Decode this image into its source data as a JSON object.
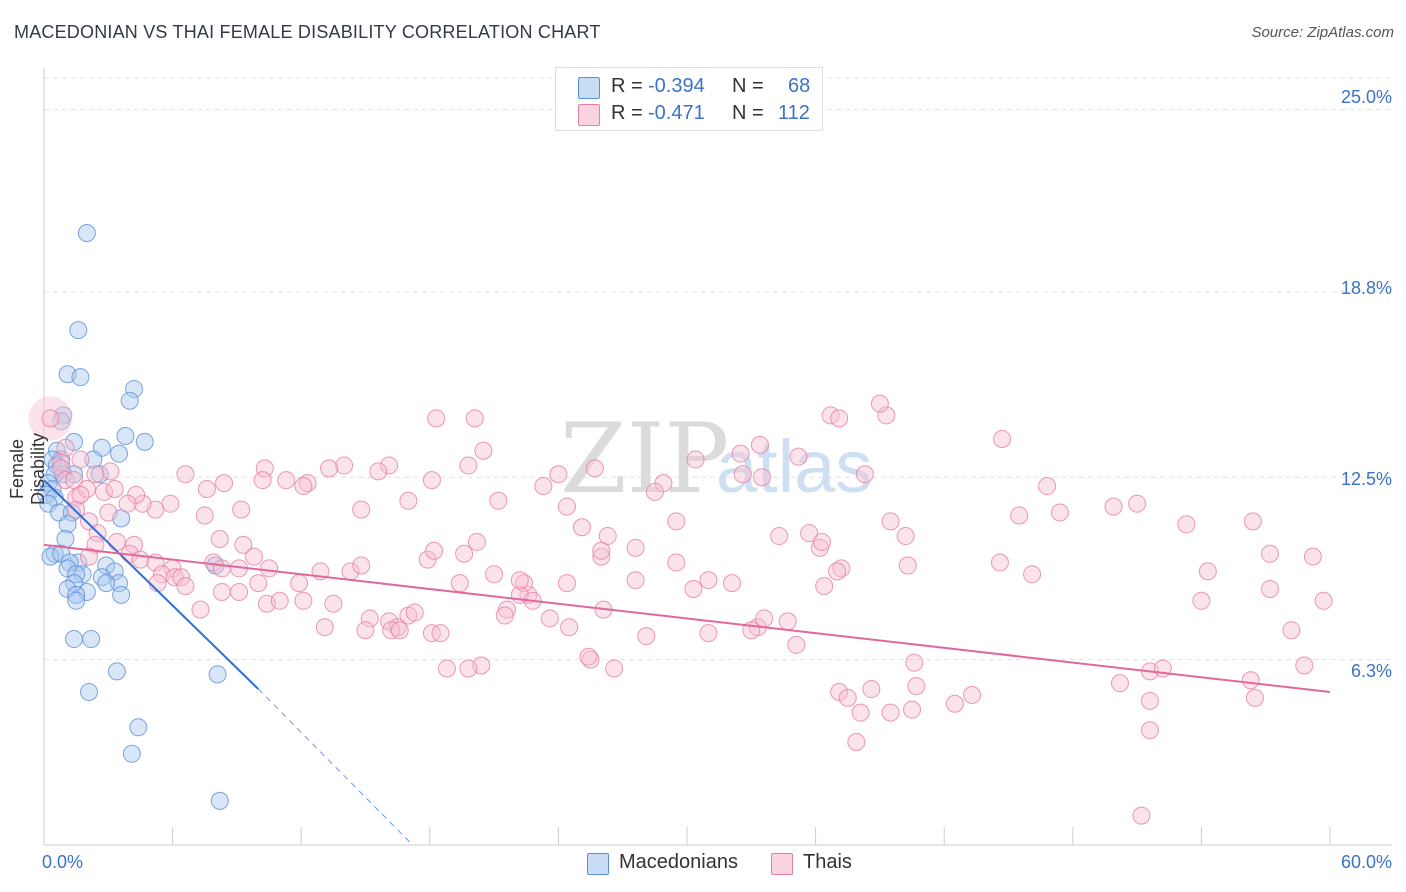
{
  "title": "MACEDONIAN VS THAI FEMALE DISABILITY CORRELATION CHART",
  "source": "Source: ZipAtlas.com",
  "watermark": {
    "zip": "ZIP",
    "atlas": "atlas"
  },
  "legend": {
    "rows": [
      {
        "r_label": "R =",
        "r_value": "-0.394",
        "n_label": "N =",
        "n_value": "68",
        "color": "#a9c8f0",
        "border": "#5b8fd6"
      },
      {
        "r_label": "R =",
        "r_value": "-0.471",
        "n_label": "N =",
        "n_value": "112",
        "color": "#f6c0d2",
        "border": "#e77fa3"
      }
    ]
  },
  "chart_data": {
    "type": "scatter",
    "title": "MACEDONIAN VS THAI FEMALE DISABILITY CORRELATION CHART",
    "xlabel": "",
    "ylabel": "Female Disability",
    "xlim": [
      0,
      60
    ],
    "ylim": [
      0,
      26
    ],
    "x_tick_labels": [
      "0.0%",
      "60.0%"
    ],
    "y_ticks": [
      6.3,
      12.5,
      18.8,
      25.0
    ],
    "y_tick_labels": [
      "6.3%",
      "12.5%",
      "18.8%",
      "25.0%"
    ],
    "grid": true,
    "series": [
      {
        "name": "Macedonians",
        "color": "#a9c8f0",
        "edge": "#5b8fd6",
        "line_color": "#2f6fd6",
        "trend": {
          "x0": 0,
          "y0": 12.4,
          "x1": 10.0,
          "y1": 5.3,
          "dash_to_x": 17.2,
          "dash_to_y": 0.0
        },
        "points": [
          [
            2.0,
            20.8
          ],
          [
            1.6,
            17.5
          ],
          [
            1.1,
            16.0
          ],
          [
            1.7,
            15.9
          ],
          [
            4.2,
            15.5
          ],
          [
            4.0,
            15.1
          ],
          [
            0.9,
            14.6
          ],
          [
            0.8,
            14.4
          ],
          [
            3.8,
            13.9
          ],
          [
            4.7,
            13.7
          ],
          [
            1.4,
            13.7
          ],
          [
            2.7,
            13.5
          ],
          [
            0.6,
            13.4
          ],
          [
            3.5,
            13.3
          ],
          [
            0.8,
            13.1
          ],
          [
            2.3,
            13.1
          ],
          [
            0.4,
            13.1
          ],
          [
            0.6,
            12.9
          ],
          [
            0.9,
            12.6
          ],
          [
            1.4,
            12.6
          ],
          [
            0.5,
            12.6
          ],
          [
            2.6,
            12.6
          ],
          [
            0.2,
            12.3
          ],
          [
            0.4,
            12.1
          ],
          [
            0.1,
            11.9
          ],
          [
            0.5,
            11.8
          ],
          [
            0.2,
            11.6
          ],
          [
            0.7,
            11.3
          ],
          [
            1.3,
            11.3
          ],
          [
            3.6,
            11.1
          ],
          [
            1.1,
            10.9
          ],
          [
            1.0,
            10.4
          ],
          [
            0.5,
            9.9
          ],
          [
            0.3,
            9.8
          ],
          [
            0.8,
            9.9
          ],
          [
            1.6,
            9.6
          ],
          [
            1.2,
            9.6
          ],
          [
            2.9,
            9.5
          ],
          [
            1.1,
            9.4
          ],
          [
            8.0,
            9.5
          ],
          [
            3.3,
            9.3
          ],
          [
            1.8,
            9.2
          ],
          [
            1.5,
            9.2
          ],
          [
            2.7,
            9.1
          ],
          [
            1.4,
            8.9
          ],
          [
            3.5,
            8.9
          ],
          [
            2.9,
            8.9
          ],
          [
            1.1,
            8.7
          ],
          [
            2.0,
            8.6
          ],
          [
            1.5,
            8.5
          ],
          [
            3.6,
            8.5
          ],
          [
            1.5,
            8.3
          ],
          [
            1.4,
            7.0
          ],
          [
            2.2,
            7.0
          ],
          [
            3.4,
            5.9
          ],
          [
            8.1,
            5.8
          ],
          [
            2.1,
            5.2
          ],
          [
            4.4,
            4.0
          ],
          [
            4.1,
            3.1
          ],
          [
            8.2,
            1.5
          ]
        ]
      },
      {
        "name": "Thais",
        "color": "#f6c0d2",
        "edge": "#e77fa3",
        "line_color": "#e0689a",
        "trend": {
          "x0": 0,
          "y0": 10.2,
          "x1": 60,
          "y1": 5.2
        },
        "points": [
          [
            0.3,
            14.5
          ],
          [
            1.0,
            13.5
          ],
          [
            0.8,
            13.0
          ],
          [
            1.7,
            13.1
          ],
          [
            0.8,
            12.8
          ],
          [
            1.0,
            12.4
          ],
          [
            1.4,
            12.4
          ],
          [
            2.8,
            12.0
          ],
          [
            1.5,
            11.8
          ],
          [
            1.5,
            11.4
          ],
          [
            3.0,
            11.3
          ],
          [
            2.1,
            11.0
          ],
          [
            2.5,
            10.6
          ],
          [
            2.4,
            10.2
          ],
          [
            3.4,
            10.3
          ],
          [
            4.2,
            10.2
          ],
          [
            2.1,
            9.8
          ],
          [
            4.0,
            9.9
          ],
          [
            4.5,
            9.7
          ],
          [
            5.2,
            9.6
          ],
          [
            6.0,
            9.4
          ],
          [
            5.5,
            9.2
          ],
          [
            6.1,
            9.1
          ],
          [
            6.4,
            9.1
          ],
          [
            5.3,
            8.9
          ],
          [
            6.6,
            8.8
          ],
          [
            7.9,
            9.6
          ],
          [
            8.3,
            9.4
          ],
          [
            8.2,
            10.4
          ],
          [
            9.3,
            10.2
          ],
          [
            9.8,
            9.8
          ],
          [
            9.1,
            9.4
          ],
          [
            10.5,
            9.4
          ],
          [
            10.0,
            8.9
          ],
          [
            8.3,
            8.6
          ],
          [
            9.1,
            8.6
          ],
          [
            7.3,
            8.0
          ],
          [
            10.4,
            8.2
          ],
          [
            11.0,
            8.3
          ],
          [
            12.1,
            8.3
          ],
          [
            11.9,
            8.9
          ],
          [
            12.9,
            9.3
          ],
          [
            13.5,
            8.2
          ],
          [
            13.1,
            7.4
          ],
          [
            14.3,
            9.3
          ],
          [
            14.8,
            9.5
          ],
          [
            15.2,
            7.7
          ],
          [
            16.1,
            7.6
          ],
          [
            16.5,
            7.4
          ],
          [
            16.2,
            7.3
          ],
          [
            15.0,
            7.3
          ],
          [
            17.0,
            7.8
          ],
          [
            16.6,
            7.3
          ],
          [
            17.3,
            7.9
          ],
          [
            17.9,
            9.7
          ],
          [
            18.1,
            7.2
          ],
          [
            18.5,
            7.2
          ],
          [
            18.2,
            10.0
          ],
          [
            19.4,
            8.9
          ],
          [
            20.2,
            10.3
          ],
          [
            20.4,
            6.1
          ],
          [
            18.8,
            6.0
          ],
          [
            19.8,
            6.0
          ],
          [
            19.6,
            9.9
          ],
          [
            21.0,
            9.2
          ],
          [
            22.6,
            8.5
          ],
          [
            22.4,
            8.9
          ],
          [
            21.6,
            8.0
          ],
          [
            22.2,
            8.5
          ],
          [
            22.8,
            8.3
          ],
          [
            22.2,
            9.0
          ],
          [
            21.5,
            7.8
          ],
          [
            23.6,
            7.7
          ],
          [
            24.4,
            8.9
          ],
          [
            24.4,
            11.5
          ],
          [
            25.1,
            10.8
          ],
          [
            24.5,
            7.4
          ],
          [
            25.5,
            6.3
          ],
          [
            26.0,
            9.8
          ],
          [
            26.1,
            8.0
          ],
          [
            26.6,
            6.0
          ],
          [
            25.4,
            6.4
          ],
          [
            27.6,
            10.1
          ],
          [
            27.6,
            9.0
          ],
          [
            28.1,
            7.1
          ],
          [
            28.9,
            12.3
          ],
          [
            29.5,
            11.0
          ],
          [
            29.5,
            9.6
          ],
          [
            30.3,
            8.7
          ],
          [
            31.0,
            9.0
          ],
          [
            31.0,
            7.2
          ],
          [
            32.1,
            8.9
          ],
          [
            33.3,
            7.4
          ],
          [
            33.0,
            7.3
          ],
          [
            33.6,
            7.7
          ],
          [
            34.3,
            10.5
          ],
          [
            34.7,
            7.6
          ],
          [
            35.1,
            6.8
          ],
          [
            35.7,
            10.6
          ],
          [
            36.2,
            10.1
          ],
          [
            36.4,
            8.8
          ],
          [
            37.1,
            5.2
          ],
          [
            37.2,
            9.4
          ],
          [
            37.5,
            5.0
          ],
          [
            37.9,
            3.5
          ],
          [
            38.1,
            4.5
          ],
          [
            38.6,
            5.3
          ],
          [
            39.5,
            4.5
          ],
          [
            40.5,
            4.6
          ],
          [
            40.6,
            6.2
          ],
          [
            40.7,
            5.4
          ],
          [
            42.5,
            4.8
          ],
          [
            43.3,
            5.1
          ],
          [
            44.6,
            9.6
          ],
          [
            45.5,
            11.2
          ],
          [
            46.1,
            9.2
          ],
          [
            50.2,
            5.5
          ],
          [
            51.6,
            4.9
          ],
          [
            51.6,
            3.9
          ],
          [
            51.2,
            1.0
          ],
          [
            51.6,
            5.9
          ],
          [
            54.3,
            9.3
          ],
          [
            54.0,
            8.3
          ],
          [
            56.3,
            5.6
          ],
          [
            56.5,
            5.0
          ],
          [
            57.2,
            8.7
          ],
          [
            58.8,
            6.1
          ],
          [
            58.2,
            7.3
          ],
          [
            59.2,
            9.8
          ],
          [
            59.7,
            8.3
          ],
          [
            52.2,
            6.0
          ],
          [
            56.4,
            11.0
          ],
          [
            53.3,
            10.9
          ],
          [
            57.2,
            9.9
          ],
          [
            39.5,
            11.0
          ],
          [
            51.0,
            11.6
          ],
          [
            40.3,
            9.5
          ],
          [
            36.7,
            14.6
          ],
          [
            39.3,
            14.6
          ],
          [
            37.1,
            14.5
          ],
          [
            39.0,
            15.0
          ],
          [
            33.4,
            13.6
          ],
          [
            44.7,
            13.8
          ],
          [
            46.8,
            12.2
          ],
          [
            38.3,
            12.6
          ],
          [
            47.4,
            11.3
          ],
          [
            49.9,
            11.5
          ],
          [
            40.2,
            10.5
          ],
          [
            37.0,
            9.3
          ],
          [
            36.3,
            10.3
          ],
          [
            35.2,
            13.2
          ],
          [
            33.5,
            12.5
          ],
          [
            32.6,
            12.6
          ],
          [
            32.5,
            13.3
          ],
          [
            30.4,
            13.1
          ],
          [
            28.5,
            12.0
          ],
          [
            26.3,
            10.5
          ],
          [
            26.0,
            10.0
          ],
          [
            25.7,
            12.8
          ],
          [
            24.0,
            12.6
          ],
          [
            23.3,
            12.2
          ],
          [
            21.2,
            11.7
          ],
          [
            20.5,
            13.4
          ],
          [
            20.1,
            14.5
          ],
          [
            19.8,
            12.9
          ],
          [
            18.3,
            14.5
          ],
          [
            18.1,
            12.4
          ],
          [
            17.0,
            11.7
          ],
          [
            16.1,
            12.9
          ],
          [
            15.6,
            12.7
          ],
          [
            14.8,
            11.4
          ],
          [
            14.0,
            12.9
          ],
          [
            13.3,
            12.8
          ],
          [
            12.3,
            12.3
          ],
          [
            12.1,
            12.2
          ],
          [
            11.3,
            12.4
          ],
          [
            10.3,
            12.8
          ],
          [
            10.2,
            12.4
          ],
          [
            9.2,
            11.4
          ],
          [
            8.4,
            12.3
          ],
          [
            7.6,
            12.1
          ],
          [
            7.5,
            11.2
          ],
          [
            6.6,
            12.6
          ],
          [
            5.9,
            11.6
          ],
          [
            5.2,
            11.4
          ],
          [
            4.6,
            11.6
          ],
          [
            4.3,
            11.9
          ],
          [
            3.9,
            11.6
          ],
          [
            3.3,
            12.1
          ],
          [
            3.1,
            12.7
          ],
          [
            2.4,
            12.6
          ],
          [
            2.0,
            12.1
          ],
          [
            1.7,
            11.9
          ]
        ]
      }
    ]
  }
}
